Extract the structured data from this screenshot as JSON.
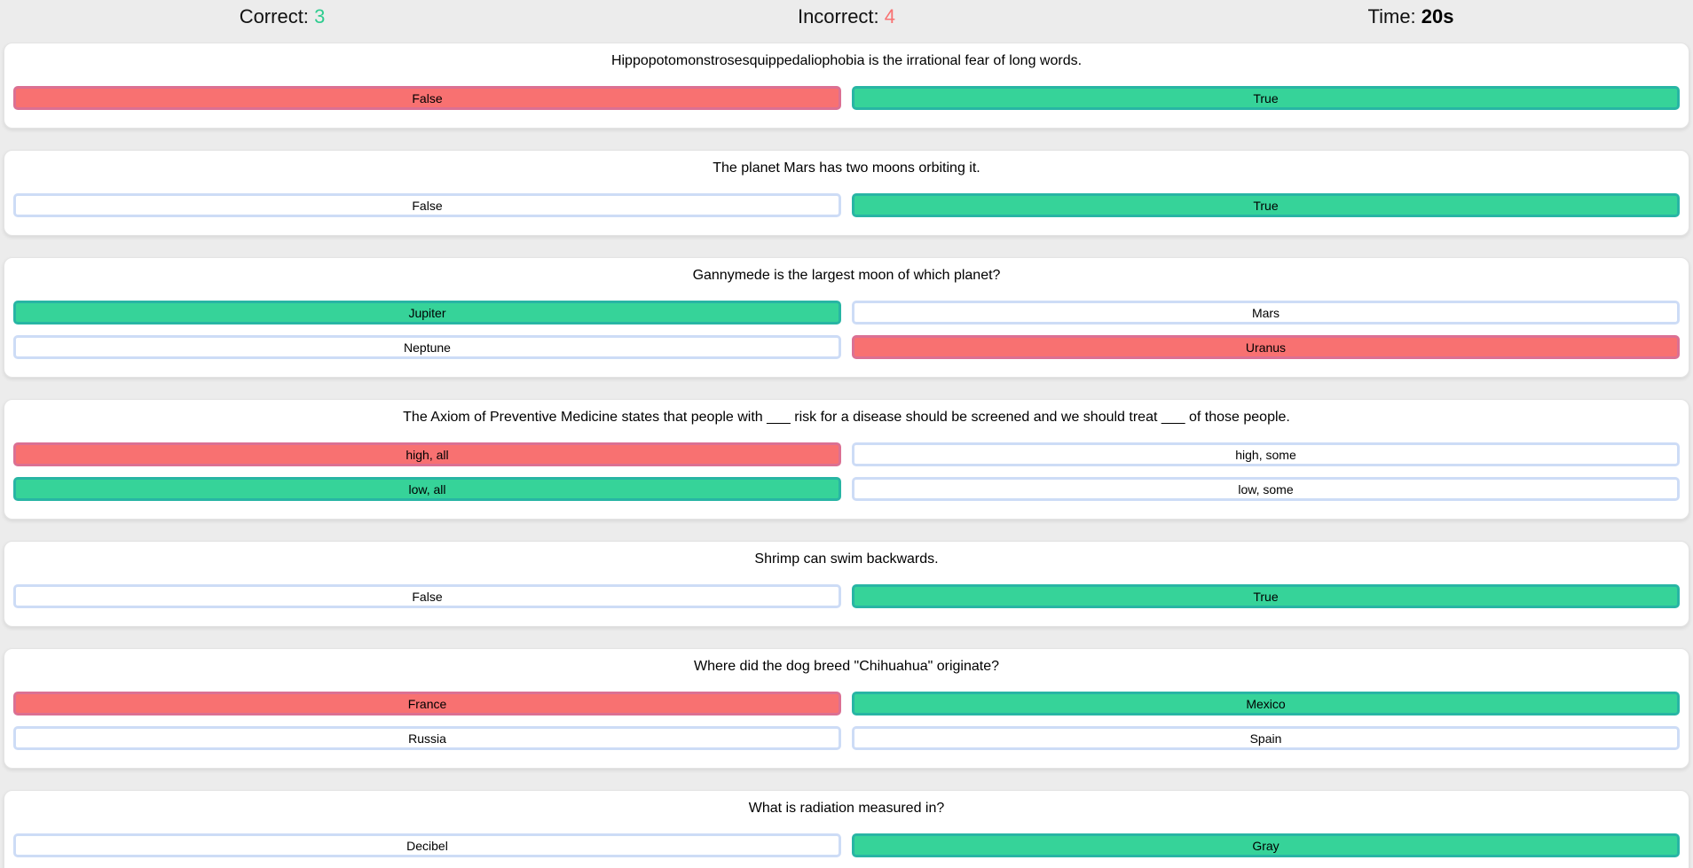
{
  "scoreboard": {
    "correct_label": "Correct:",
    "correct_value": "3",
    "incorrect_label": "Incorrect:",
    "incorrect_value": "4",
    "time_label": "Time:",
    "time_value": "20s"
  },
  "colors": {
    "page_bg": "#ececec",
    "card_bg": "#ffffff",
    "correct_green": "#36d399",
    "correct_green_border": "#28b5a4",
    "incorrect_red": "#f87171",
    "incorrect_red_border": "#db7093",
    "neutral_border_blue": "#cddcf6",
    "score_green": "#2ecc8f",
    "score_red": "#f87171"
  },
  "cards": [
    {
      "question": "Hippopotomonstrosesquippedaliophobia is the irrational fear of long words.",
      "answers": [
        {
          "label": "False",
          "state": "incorrect"
        },
        {
          "label": "True",
          "state": "correct"
        }
      ]
    },
    {
      "question": "The planet Mars has two moons orbiting it.",
      "answers": [
        {
          "label": "False",
          "state": "neutral"
        },
        {
          "label": "True",
          "state": "correct"
        }
      ]
    },
    {
      "question": "Gannymede is the largest moon of which planet?",
      "answers": [
        {
          "label": "Jupiter",
          "state": "correct"
        },
        {
          "label": "Mars",
          "state": "neutral"
        },
        {
          "label": "Neptune",
          "state": "neutral"
        },
        {
          "label": "Uranus",
          "state": "incorrect"
        }
      ]
    },
    {
      "question": "The Axiom of Preventive Medicine states that people with ___ risk for a disease should be screened and we should treat ___ of those people.",
      "answers": [
        {
          "label": "high, all",
          "state": "incorrect"
        },
        {
          "label": "high, some",
          "state": "neutral"
        },
        {
          "label": "low, all",
          "state": "correct"
        },
        {
          "label": "low, some",
          "state": "neutral"
        }
      ]
    },
    {
      "question": "Shrimp can swim backwards.",
      "answers": [
        {
          "label": "False",
          "state": "neutral"
        },
        {
          "label": "True",
          "state": "correct"
        }
      ]
    },
    {
      "question": "Where did the dog breed \"Chihuahua\" originate?",
      "answers": [
        {
          "label": "France",
          "state": "incorrect"
        },
        {
          "label": "Mexico",
          "state": "correct"
        },
        {
          "label": "Russia",
          "state": "neutral"
        },
        {
          "label": "Spain",
          "state": "neutral"
        }
      ]
    },
    {
      "question": "What is radiation measured in?",
      "answers": [
        {
          "label": "Decibel",
          "state": "neutral"
        },
        {
          "label": "Gray",
          "state": "correct"
        },
        {
          "label": "",
          "state": "neutral"
        },
        {
          "label": "",
          "state": "neutral"
        }
      ]
    }
  ]
}
